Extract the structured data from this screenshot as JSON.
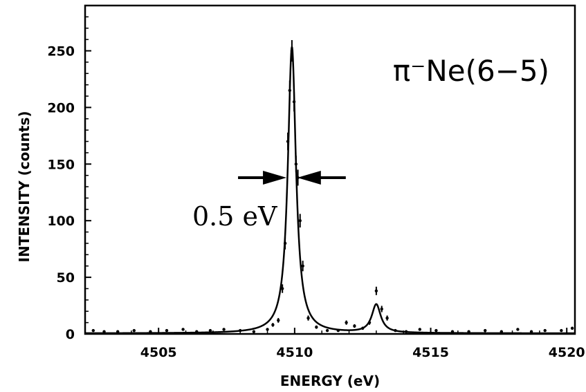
{
  "chart_data": {
    "type": "line",
    "title": "π⁻Ne(6−5)",
    "xlabel": "ENERGY (eV)",
    "ylabel": "INTENSITY (counts)",
    "xlim": [
      4502.3,
      4520.3
    ],
    "ylim": [
      0,
      290
    ],
    "x_ticks": [
      4505,
      4510,
      4515,
      4520
    ],
    "y_ticks": [
      0,
      50,
      100,
      150,
      200,
      250
    ],
    "annotations": {
      "width_label": "0.5 eV",
      "width_left_x": 4509.7,
      "width_right_x": 4510.1,
      "width_y": 138
    },
    "fit_peaks": [
      {
        "center": 4509.9,
        "height": 253,
        "hwhm": 0.18
      },
      {
        "center": 4513.0,
        "height": 25,
        "hwhm": 0.2
      }
    ],
    "series": [
      {
        "kind": "data_points",
        "x": [
          4502.6,
          4503.0,
          4503.5,
          4504.1,
          4504.7,
          4505.3,
          4505.9,
          4506.4,
          4506.9,
          4507.4,
          4508.0,
          4508.5,
          4509.0,
          4509.2,
          4509.4,
          4509.55,
          4509.65,
          4509.75,
          4509.82,
          4509.9,
          4509.98,
          4510.05,
          4510.12,
          4510.2,
          4510.3,
          4510.5,
          4510.8,
          4511.2,
          4511.6,
          4511.9,
          4512.2,
          4512.5,
          4512.75,
          4513.0,
          4513.2,
          4513.4,
          4513.7,
          4514.1,
          4514.6,
          4515.2,
          4515.8,
          4516.4,
          4517.0,
          4517.6,
          4518.2,
          4518.7,
          4519.2,
          4519.8,
          4520.2
        ],
        "y": [
          3,
          2,
          2,
          3,
          2,
          3,
          4,
          2,
          3,
          4,
          3,
          2,
          4,
          8,
          12,
          40,
          80,
          170,
          215,
          250,
          205,
          150,
          138,
          100,
          60,
          14,
          6,
          3,
          3,
          10,
          7,
          5,
          10,
          38,
          22,
          14,
          3,
          2,
          4,
          3,
          2,
          2,
          3,
          2,
          4,
          2,
          3,
          3,
          5
        ]
      }
    ],
    "grid": false,
    "legend": "none"
  }
}
